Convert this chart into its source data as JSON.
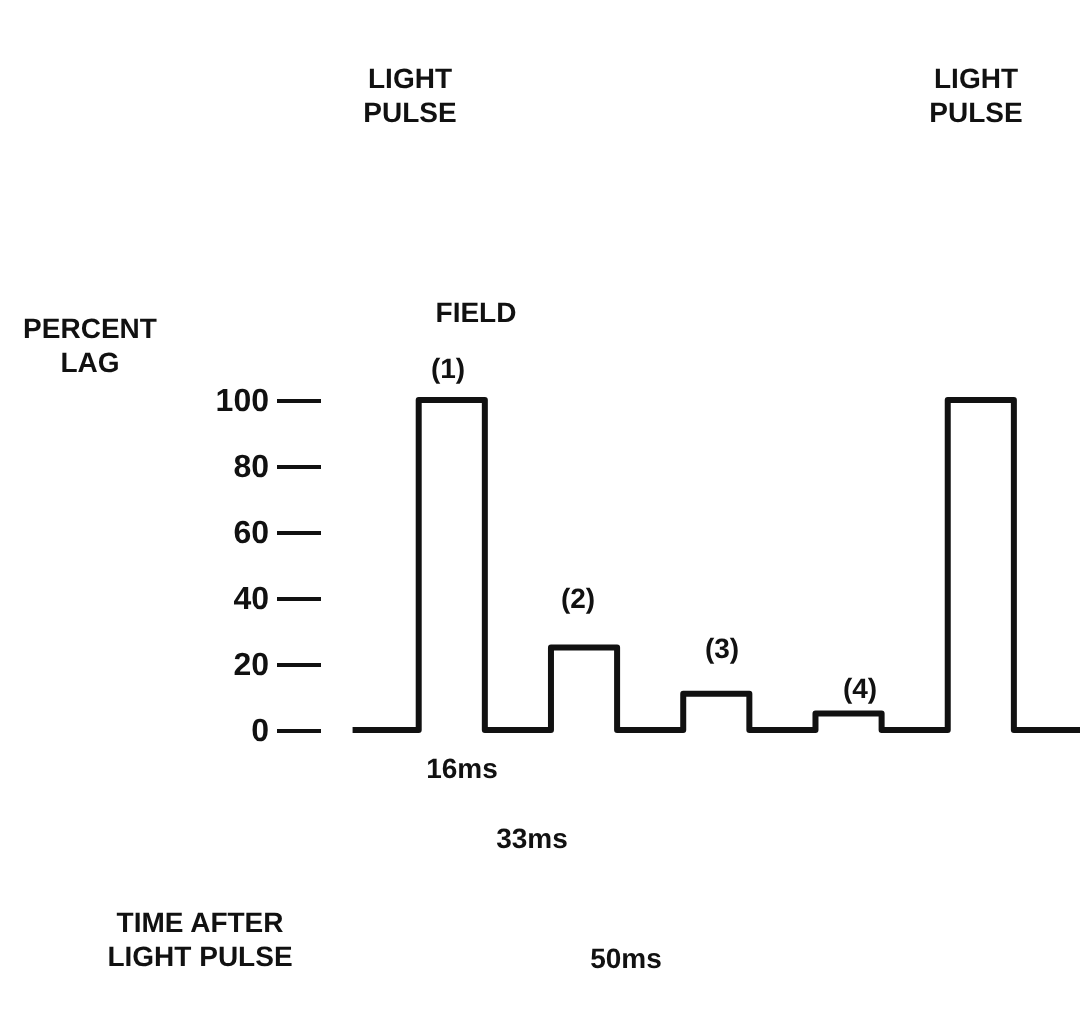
{
  "chart_data": {
    "type": "step",
    "ylabel": "PERCENT\nLAG",
    "categories": [
      null,
      null,
      null,
      null,
      null,
      null,
      null,
      null,
      null,
      null,
      null,
      null
    ],
    "values": [
      0,
      100,
      0,
      25,
      0,
      11,
      0,
      5,
      0,
      100,
      0,
      0
    ],
    "color": "#111111",
    "ylim": [
      0,
      100
    ],
    "yticks": [
      0,
      20,
      40,
      60,
      80,
      100
    ],
    "tick_labels": "y",
    "grid": false,
    "annotations": [
      "LIGHT\nPULSE",
      "LIGHT\nPULSE",
      "FIELD",
      "(1)",
      "(2)",
      "(3)",
      "(4)",
      "16ms",
      "33ms",
      "TIME AFTER\nLIGHT PULSE",
      "50ms"
    ]
  }
}
